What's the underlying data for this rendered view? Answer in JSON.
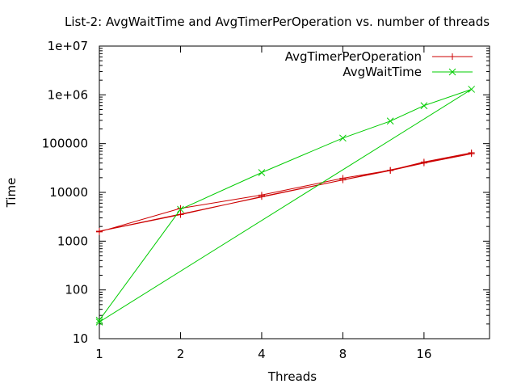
{
  "chart_data": {
    "type": "line",
    "title": "List-2: AvgWaitTime and AvgTimerPerOperation vs. number of threads",
    "xlabel": "Threads",
    "ylabel": "Time",
    "x_scale": "log2",
    "y_scale": "log10",
    "xlim": [
      1,
      28
    ],
    "ylim": [
      10,
      10000000
    ],
    "x_ticks": [
      "1",
      "2",
      "4",
      "8",
      "16"
    ],
    "x_tick_values": [
      1,
      2,
      4,
      8,
      16
    ],
    "y_ticks": [
      "10",
      "100",
      "1000",
      "10000",
      "100000",
      "1e+06",
      "1e+07"
    ],
    "y_tick_values": [
      10,
      100,
      1000,
      10000,
      100000,
      1000000,
      10000000
    ],
    "legend_position": "top-right",
    "grid": false,
    "series": [
      {
        "name": "AvgTimerPerOperation",
        "color": "#cc0000",
        "marker": "plus",
        "x": [
          1,
          2,
          4,
          8,
          12,
          16,
          24,
          1,
          2,
          4,
          8,
          12,
          16,
          24
        ],
        "y": [
          1550,
          4700,
          8800,
          19500,
          28500,
          42000,
          65000,
          1600,
          3500,
          8200,
          18000,
          28000,
          40000,
          62000
        ]
      },
      {
        "name": "AvgWaitTime",
        "color": "#00cc00",
        "marker": "cross",
        "x": [
          1,
          2,
          4,
          8,
          12,
          16,
          24,
          1
        ],
        "y": [
          24,
          4500,
          25500,
          130000,
          290000,
          600000,
          1300000,
          22
        ]
      }
    ]
  }
}
